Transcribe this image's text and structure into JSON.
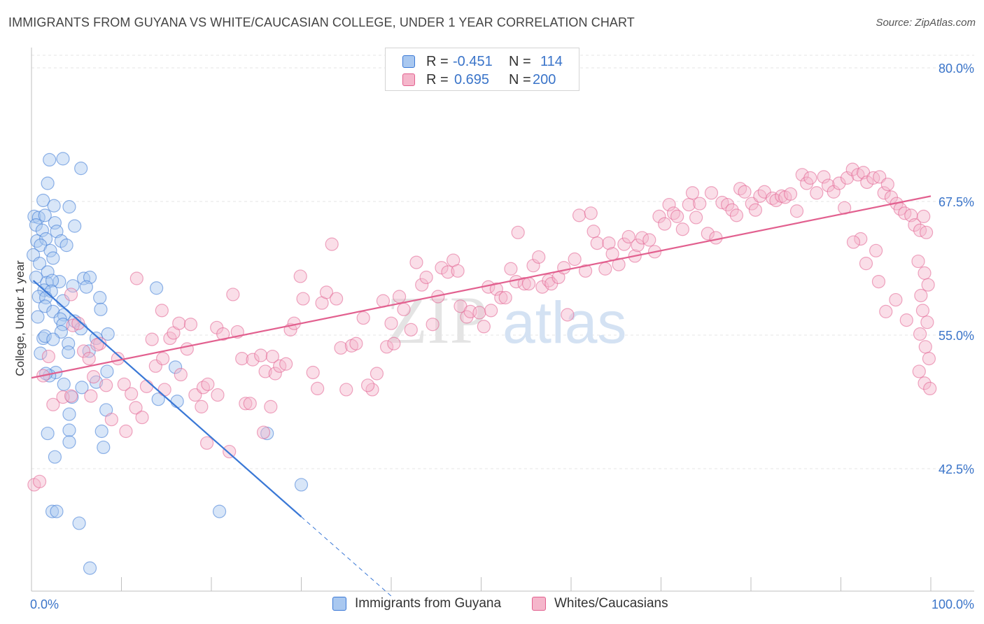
{
  "title": "IMMIGRANTS FROM GUYANA VS WHITE/CAUCASIAN COLLEGE, UNDER 1 YEAR CORRELATION CHART",
  "source": "Source: ZipAtlas.com",
  "watermark": {
    "zip": "ZIP",
    "atlas": "atlas"
  },
  "colors": {
    "blue": "#3a78d6",
    "pink": "#e2608f",
    "blue_fill": "#a9c8f0",
    "pink_fill": "#f5b6cb",
    "tick_blue": "#3a74c9",
    "grid": "#e6e6e6"
  },
  "legend": {
    "rows": [
      {
        "r_label": "R =",
        "r_value": "-0.451",
        "n_label": "N =",
        "n_value": "114"
      },
      {
        "r_label": "R =",
        "r_value": "0.695",
        "n_label": "N =",
        "n_value": "200"
      }
    ]
  },
  "bottom_legend": [
    {
      "label": "Immigrants from Guyana"
    },
    {
      "label": "Whites/Caucasians"
    }
  ],
  "chart_data": {
    "type": "scatter",
    "xlabel": "",
    "ylabel": "College, Under 1 year",
    "xlim": [
      0,
      100
    ],
    "ylim": [
      30,
      81
    ],
    "x_tick_labels": {
      "left": "0.0%",
      "right": "100.0%"
    },
    "y_ticks": [
      {
        "value": 80.0,
        "label": "80.0%"
      },
      {
        "value": 67.5,
        "label": "67.5%"
      },
      {
        "value": 55.0,
        "label": "55.0%"
      },
      {
        "value": 42.5,
        "label": "42.5%"
      }
    ],
    "series": [
      {
        "name": "Immigrants from Guyana",
        "color": "#3a78d6",
        "R": -0.451,
        "N": 114,
        "trend": {
          "x0": 0.2,
          "y0": 60.1,
          "x1": 30.0,
          "y1": 38.0,
          "dash_to_x": 40.0
        },
        "points": [
          [
            2.0,
            71.4
          ],
          [
            3.5,
            71.5
          ],
          [
            5.5,
            70.6
          ],
          [
            1.8,
            69.2
          ],
          [
            0.3,
            66.1
          ],
          [
            0.8,
            66.0
          ],
          [
            1.3,
            67.6
          ],
          [
            2.5,
            67.1
          ],
          [
            4.2,
            67.0
          ],
          [
            1.5,
            66.2
          ],
          [
            2.6,
            65.5
          ],
          [
            4.8,
            65.2
          ],
          [
            0.5,
            65.3
          ],
          [
            1.2,
            64.8
          ],
          [
            2.8,
            64.7
          ],
          [
            0.6,
            63.8
          ],
          [
            1.6,
            64.0
          ],
          [
            3.3,
            63.8
          ],
          [
            3.9,
            63.4
          ],
          [
            1.0,
            63.4
          ],
          [
            0.2,
            62.5
          ],
          [
            2.1,
            62.9
          ],
          [
            2.4,
            62.2
          ],
          [
            0.9,
            61.7
          ],
          [
            1.8,
            60.9
          ],
          [
            0.5,
            60.4
          ],
          [
            3.1,
            60.0
          ],
          [
            5.8,
            60.3
          ],
          [
            6.5,
            60.4
          ],
          [
            1.7,
            59.9
          ],
          [
            2.3,
            60.1
          ],
          [
            4.6,
            59.6
          ],
          [
            6.1,
            59.5
          ],
          [
            1.4,
            59.2
          ],
          [
            2.2,
            59.1
          ],
          [
            0.8,
            58.6
          ],
          [
            1.6,
            58.5
          ],
          [
            7.6,
            58.5
          ],
          [
            3.5,
            58.2
          ],
          [
            1.5,
            57.7
          ],
          [
            2.4,
            57.2
          ],
          [
            7.7,
            57.4
          ],
          [
            0.7,
            56.7
          ],
          [
            3.6,
            56.9
          ],
          [
            3.2,
            56.5
          ],
          [
            4.8,
            56.3
          ],
          [
            3.5,
            56.0
          ],
          [
            5.5,
            55.6
          ],
          [
            3.3,
            55.3
          ],
          [
            8.5,
            55.1
          ],
          [
            1.3,
            54.7
          ],
          [
            1.5,
            54.9
          ],
          [
            2.4,
            54.6
          ],
          [
            7.2,
            54.7
          ],
          [
            4.1,
            54.2
          ],
          [
            6.4,
            53.5
          ],
          [
            1.0,
            53.3
          ],
          [
            4.1,
            53.4
          ],
          [
            2.7,
            51.5
          ],
          [
            8.4,
            51.6
          ],
          [
            2.0,
            51.2
          ],
          [
            1.6,
            51.4
          ],
          [
            7.2,
            50.6
          ],
          [
            3.6,
            50.4
          ],
          [
            5.6,
            50.1
          ],
          [
            4.5,
            49.2
          ],
          [
            8.3,
            48.0
          ],
          [
            7.8,
            46.0
          ],
          [
            4.2,
            47.6
          ],
          [
            4.2,
            46.1
          ],
          [
            1.8,
            45.8
          ],
          [
            4.2,
            45.0
          ],
          [
            8.0,
            44.5
          ],
          [
            2.6,
            43.6
          ],
          [
            14.1,
            49.0
          ],
          [
            16.2,
            48.8
          ],
          [
            26.2,
            45.8
          ],
          [
            13.9,
            59.4
          ],
          [
            16.0,
            52.0
          ],
          [
            30.0,
            41.0
          ],
          [
            20.9,
            38.5
          ],
          [
            2.3,
            38.5
          ],
          [
            2.8,
            38.5
          ],
          [
            5.3,
            37.4
          ],
          [
            6.5,
            33.2
          ]
        ]
      },
      {
        "name": "Whites/Caucasians",
        "color": "#e2608f",
        "R": 0.695,
        "N": 200,
        "trend": {
          "x0": 0.0,
          "y0": 51.0,
          "x1": 100.0,
          "y1": 68.0
        },
        "points": [
          [
            0.3,
            41.0
          ],
          [
            0.9,
            41.3
          ],
          [
            1.9,
            53.0
          ],
          [
            1.3,
            51.2
          ],
          [
            2.4,
            48.5
          ],
          [
            3.5,
            49.2
          ],
          [
            4.4,
            49.3
          ],
          [
            4.6,
            55.9
          ],
          [
            5.2,
            56.1
          ],
          [
            4.4,
            58.8
          ],
          [
            5.8,
            53.5
          ],
          [
            6.4,
            52.8
          ],
          [
            6.6,
            49.3
          ],
          [
            6.9,
            51.1
          ],
          [
            7.6,
            54.2
          ],
          [
            7.3,
            54.1
          ],
          [
            8.3,
            50.3
          ],
          [
            8.9,
            47.1
          ],
          [
            9.6,
            52.8
          ],
          [
            10.3,
            50.4
          ],
          [
            10.5,
            46.0
          ],
          [
            11.1,
            49.5
          ],
          [
            11.6,
            48.2
          ],
          [
            12.3,
            47.3
          ],
          [
            11.7,
            60.3
          ],
          [
            12.8,
            50.2
          ],
          [
            13.4,
            54.6
          ],
          [
            13.8,
            52.1
          ],
          [
            14.5,
            57.3
          ],
          [
            14.8,
            49.9
          ],
          [
            14.6,
            52.8
          ],
          [
            15.4,
            54.7
          ],
          [
            15.8,
            55.2
          ],
          [
            16.4,
            56.1
          ],
          [
            16.6,
            51.3
          ],
          [
            17.3,
            53.7
          ],
          [
            17.7,
            56.0
          ],
          [
            18.2,
            49.4
          ],
          [
            18.9,
            48.3
          ],
          [
            19.1,
            50.1
          ],
          [
            19.6,
            50.4
          ],
          [
            19.5,
            44.9
          ],
          [
            20.7,
            49.4
          ],
          [
            20.6,
            55.7
          ],
          [
            21.3,
            55.1
          ],
          [
            22.0,
            44.1
          ],
          [
            22.4,
            58.8
          ],
          [
            22.9,
            55.3
          ],
          [
            23.4,
            52.8
          ],
          [
            23.8,
            48.6
          ],
          [
            24.3,
            48.6
          ],
          [
            24.6,
            52.7
          ],
          [
            25.5,
            53.1
          ],
          [
            25.8,
            45.9
          ],
          [
            26.0,
            51.6
          ],
          [
            26.6,
            48.3
          ],
          [
            26.8,
            53.0
          ],
          [
            27.1,
            51.4
          ],
          [
            27.6,
            52.1
          ],
          [
            28.3,
            52.3
          ],
          [
            28.8,
            55.5
          ],
          [
            29.2,
            56.1
          ],
          [
            29.9,
            60.5
          ],
          [
            30.2,
            58.4
          ],
          [
            31.3,
            51.5
          ],
          [
            31.8,
            50.0
          ],
          [
            32.3,
            58.0
          ],
          [
            32.8,
            59.0
          ],
          [
            33.4,
            63.5
          ],
          [
            33.9,
            58.4
          ],
          [
            34.4,
            53.8
          ],
          [
            35.0,
            49.9
          ],
          [
            35.6,
            54.0
          ],
          [
            36.1,
            54.2
          ],
          [
            36.9,
            56.6
          ],
          [
            37.9,
            49.9
          ],
          [
            37.4,
            50.3
          ],
          [
            38.4,
            51.4
          ],
          [
            39.1,
            58.2
          ],
          [
            39.5,
            53.9
          ],
          [
            40.0,
            56.1
          ],
          [
            40.3,
            54.2
          ],
          [
            40.9,
            58.6
          ],
          [
            41.4,
            57.4
          ],
          [
            42.2,
            55.5
          ],
          [
            42.8,
            61.8
          ],
          [
            43.4,
            59.7
          ],
          [
            43.9,
            60.4
          ],
          [
            44.6,
            56.0
          ],
          [
            45.2,
            58.6
          ],
          [
            45.6,
            61.3
          ],
          [
            46.3,
            60.9
          ],
          [
            46.9,
            62.0
          ],
          [
            47.4,
            61.0
          ],
          [
            47.7,
            57.7
          ],
          [
            48.4,
            56.7
          ],
          [
            48.8,
            57.2
          ],
          [
            49.8,
            57.1
          ],
          [
            50.3,
            55.8
          ],
          [
            50.8,
            59.5
          ],
          [
            51.1,
            57.3
          ],
          [
            51.7,
            59.3
          ],
          [
            52.2,
            58.5
          ],
          [
            52.7,
            58.5
          ],
          [
            53.3,
            61.2
          ],
          [
            53.9,
            60.0
          ],
          [
            54.1,
            64.6
          ],
          [
            54.8,
            59.8
          ],
          [
            55.3,
            59.8
          ],
          [
            55.8,
            61.5
          ],
          [
            56.4,
            62.3
          ],
          [
            56.8,
            59.5
          ],
          [
            57.5,
            60.1
          ],
          [
            57.8,
            59.8
          ],
          [
            58.6,
            60.4
          ],
          [
            59.2,
            61.3
          ],
          [
            59.6,
            56.9
          ],
          [
            60.4,
            62.1
          ],
          [
            60.9,
            66.2
          ],
          [
            61.6,
            61.0
          ],
          [
            62.2,
            66.4
          ],
          [
            62.5,
            64.7
          ],
          [
            62.9,
            63.6
          ],
          [
            63.8,
            61.2
          ],
          [
            64.2,
            63.6
          ],
          [
            64.6,
            62.6
          ],
          [
            65.3,
            61.6
          ],
          [
            65.9,
            63.5
          ],
          [
            66.4,
            64.2
          ],
          [
            67.1,
            62.4
          ],
          [
            67.4,
            63.4
          ],
          [
            67.9,
            64.1
          ],
          [
            68.7,
            63.9
          ],
          [
            69.3,
            62.8
          ],
          [
            69.8,
            66.1
          ],
          [
            70.4,
            65.4
          ],
          [
            70.9,
            67.2
          ],
          [
            71.4,
            66.4
          ],
          [
            71.8,
            66.1
          ],
          [
            72.4,
            64.9
          ],
          [
            73.1,
            67.2
          ],
          [
            73.5,
            68.3
          ],
          [
            73.9,
            66.0
          ],
          [
            74.3,
            67.3
          ],
          [
            75.2,
            64.5
          ],
          [
            75.6,
            68.3
          ],
          [
            76.1,
            64.1
          ],
          [
            76.8,
            67.4
          ],
          [
            77.4,
            67.2
          ],
          [
            77.9,
            66.7
          ],
          [
            78.4,
            66.2
          ],
          [
            78.8,
            68.7
          ],
          [
            79.3,
            68.4
          ],
          [
            80.1,
            67.3
          ],
          [
            80.5,
            66.7
          ],
          [
            81.0,
            68.0
          ],
          [
            81.5,
            68.4
          ],
          [
            82.4,
            67.8
          ],
          [
            82.8,
            67.6
          ],
          [
            83.4,
            68.0
          ],
          [
            83.8,
            67.9
          ],
          [
            84.4,
            68.2
          ],
          [
            85.1,
            66.6
          ],
          [
            85.7,
            70.0
          ],
          [
            86.2,
            69.2
          ],
          [
            86.6,
            69.7
          ],
          [
            87.3,
            68.3
          ],
          [
            88.1,
            69.8
          ],
          [
            88.6,
            69.0
          ],
          [
            89.2,
            68.4
          ],
          [
            89.8,
            69.2
          ],
          [
            90.4,
            66.9
          ],
          [
            90.7,
            69.7
          ],
          [
            91.3,
            70.5
          ],
          [
            91.9,
            70.0
          ],
          [
            92.5,
            70.2
          ],
          [
            92.9,
            69.3
          ],
          [
            93.6,
            69.7
          ],
          [
            94.3,
            69.8
          ],
          [
            94.8,
            68.3
          ],
          [
            95.2,
            69.1
          ],
          [
            95.6,
            67.9
          ],
          [
            96.2,
            67.3
          ],
          [
            96.6,
            66.8
          ],
          [
            97.1,
            66.4
          ],
          [
            97.8,
            66.2
          ],
          [
            98.2,
            65.3
          ],
          [
            98.8,
            64.8
          ],
          [
            99.2,
            66.1
          ],
          [
            99.5,
            64.6
          ],
          [
            98.6,
            61.9
          ],
          [
            99.3,
            60.8
          ],
          [
            99.7,
            59.7
          ],
          [
            98.9,
            58.7
          ],
          [
            99.1,
            57.3
          ],
          [
            99.6,
            56.2
          ],
          [
            98.8,
            55.1
          ],
          [
            99.4,
            53.9
          ],
          [
            99.8,
            52.8
          ],
          [
            98.7,
            51.6
          ],
          [
            99.3,
            50.5
          ],
          [
            99.9,
            50.0
          ],
          [
            95.0,
            57.2
          ],
          [
            96.1,
            58.3
          ],
          [
            97.3,
            56.4
          ],
          [
            94.2,
            60.0
          ],
          [
            92.8,
            61.7
          ],
          [
            93.9,
            62.9
          ],
          [
            92.2,
            64.0
          ],
          [
            91.4,
            63.7
          ]
        ]
      }
    ]
  }
}
